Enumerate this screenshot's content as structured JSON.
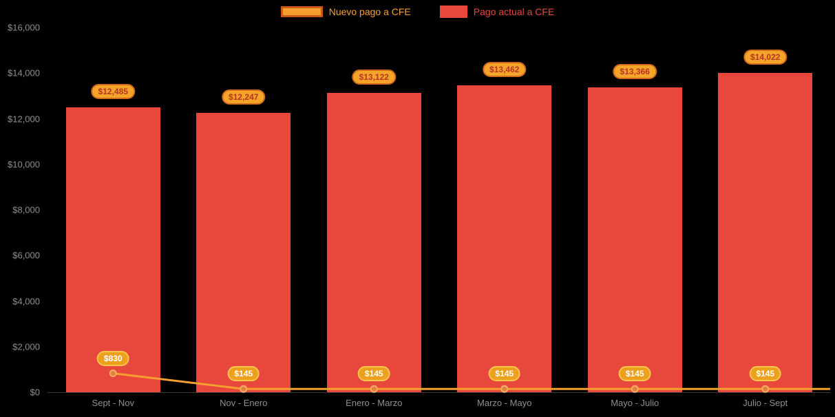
{
  "colors": {
    "background": "#000000",
    "bar": "#e8473c",
    "line": "#f5a02e",
    "axis_text": "#8f8f8f",
    "axis_line": "#3a3a3a",
    "legend_line_border": "#cb5a17",
    "bar_badge_bg": "#f5a42a",
    "bar_badge_border": "#cf6a1d",
    "bar_badge_text": "#b63425",
    "point_badge_bg": "#eda01d",
    "point_badge_border": "#f7c64f",
    "point_badge_text": "#ffffff",
    "marker_fill": "#e2823f",
    "marker_stroke": "#f2ae62"
  },
  "chart_data": {
    "type": "bar",
    "categories": [
      "Sept - Nov",
      "Nov - Enero",
      "Enero - Marzo",
      "Marzo - Mayo",
      "Mayo - Julio",
      "Julio - Sept"
    ],
    "series": [
      {
        "name": "Nuevo pago a CFE",
        "type": "line",
        "values": [
          830,
          145,
          145,
          145,
          145,
          145
        ],
        "labels": [
          "$830",
          "$145",
          "$145",
          "$145",
          "$145",
          "$145"
        ],
        "color": "#f5a02e"
      },
      {
        "name": "Pago actual a CFE",
        "type": "bar",
        "values": [
          12485,
          12247,
          13122,
          13462,
          13366,
          14022
        ],
        "labels": [
          "$12,485",
          "$12,247",
          "$13,122",
          "$13,462",
          "$13,366",
          "$14,022"
        ],
        "color": "#e8473c"
      }
    ],
    "title": "",
    "xlabel": "",
    "ylabel": "",
    "ylim": [
      0,
      16000
    ],
    "ytick_step": 2000,
    "ytick_labels": [
      "$0",
      "$2,000",
      "$4,000",
      "$6,000",
      "$8,000",
      "$10,000",
      "$12,000",
      "$14,000",
      "$16,000"
    ],
    "legend_position": "top",
    "grid": false
  }
}
